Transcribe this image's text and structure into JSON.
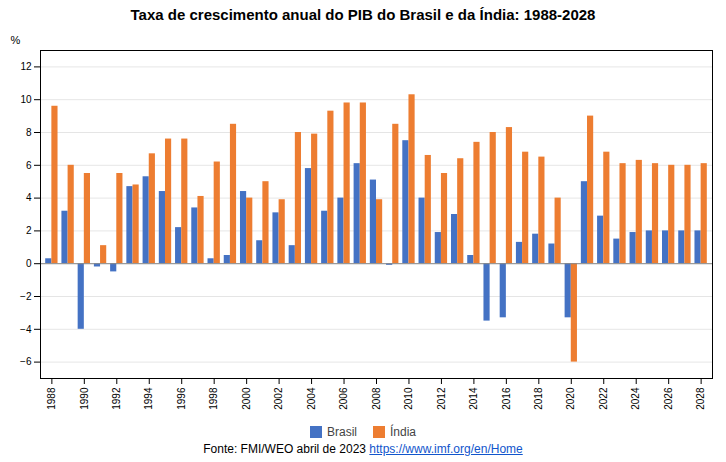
{
  "chart_data": {
    "type": "bar",
    "title": "Taxa de crescimento anual do PIB do Brasil e da Índia: 1988-2028",
    "ylabel": "%",
    "categories": [
      "1988",
      null,
      "1990",
      null,
      "1992",
      null,
      "1994",
      null,
      "1996",
      null,
      "1998",
      null,
      "2000",
      null,
      "2002",
      null,
      "2004",
      null,
      "2006",
      null,
      "2008",
      null,
      "2010",
      null,
      "2012",
      null,
      "2014",
      null,
      "2016",
      null,
      "2018",
      null,
      "2020",
      null,
      "2022",
      null,
      "2024",
      null,
      "2026",
      null,
      "2028"
    ],
    "series": [
      {
        "name": "Brasil",
        "color": "#4472c4",
        "values": [
          0.3,
          3.2,
          -4.0,
          -0.2,
          -0.5,
          4.7,
          5.3,
          4.4,
          2.2,
          3.4,
          0.3,
          0.5,
          4.4,
          1.4,
          3.1,
          1.1,
          5.8,
          3.2,
          4.0,
          6.1,
          5.1,
          -0.1,
          7.5,
          4.0,
          1.9,
          3.0,
          0.5,
          -3.5,
          -3.3,
          1.3,
          1.8,
          1.2,
          -3.3,
          5.0,
          2.9,
          1.5,
          1.9,
          2.0,
          2.0,
          2.0,
          2.0
        ]
      },
      {
        "name": "Índia",
        "color": "#ed7d31",
        "values": [
          9.6,
          6.0,
          5.5,
          1.1,
          5.5,
          4.8,
          6.7,
          7.6,
          7.6,
          4.1,
          6.2,
          8.5,
          4.0,
          5.0,
          3.9,
          8.0,
          7.9,
          9.3,
          9.8,
          9.8,
          3.9,
          8.5,
          10.3,
          6.6,
          5.5,
          6.4,
          7.4,
          8.0,
          8.3,
          6.8,
          6.5,
          4.0,
          -6.0,
          9.0,
          6.8,
          6.1,
          6.3,
          6.1,
          6.0,
          6.0,
          6.1
        ]
      }
    ],
    "ylim": [
      -7,
      13
    ],
    "yticks": [
      -6,
      -4,
      -2,
      0,
      2,
      4,
      6,
      8,
      10,
      12
    ],
    "grid": true,
    "legend": "bottom",
    "annotations": [
      "Fonte: FMI/WEO abril de 2023",
      "https://www.imf.org/en/Home"
    ]
  }
}
